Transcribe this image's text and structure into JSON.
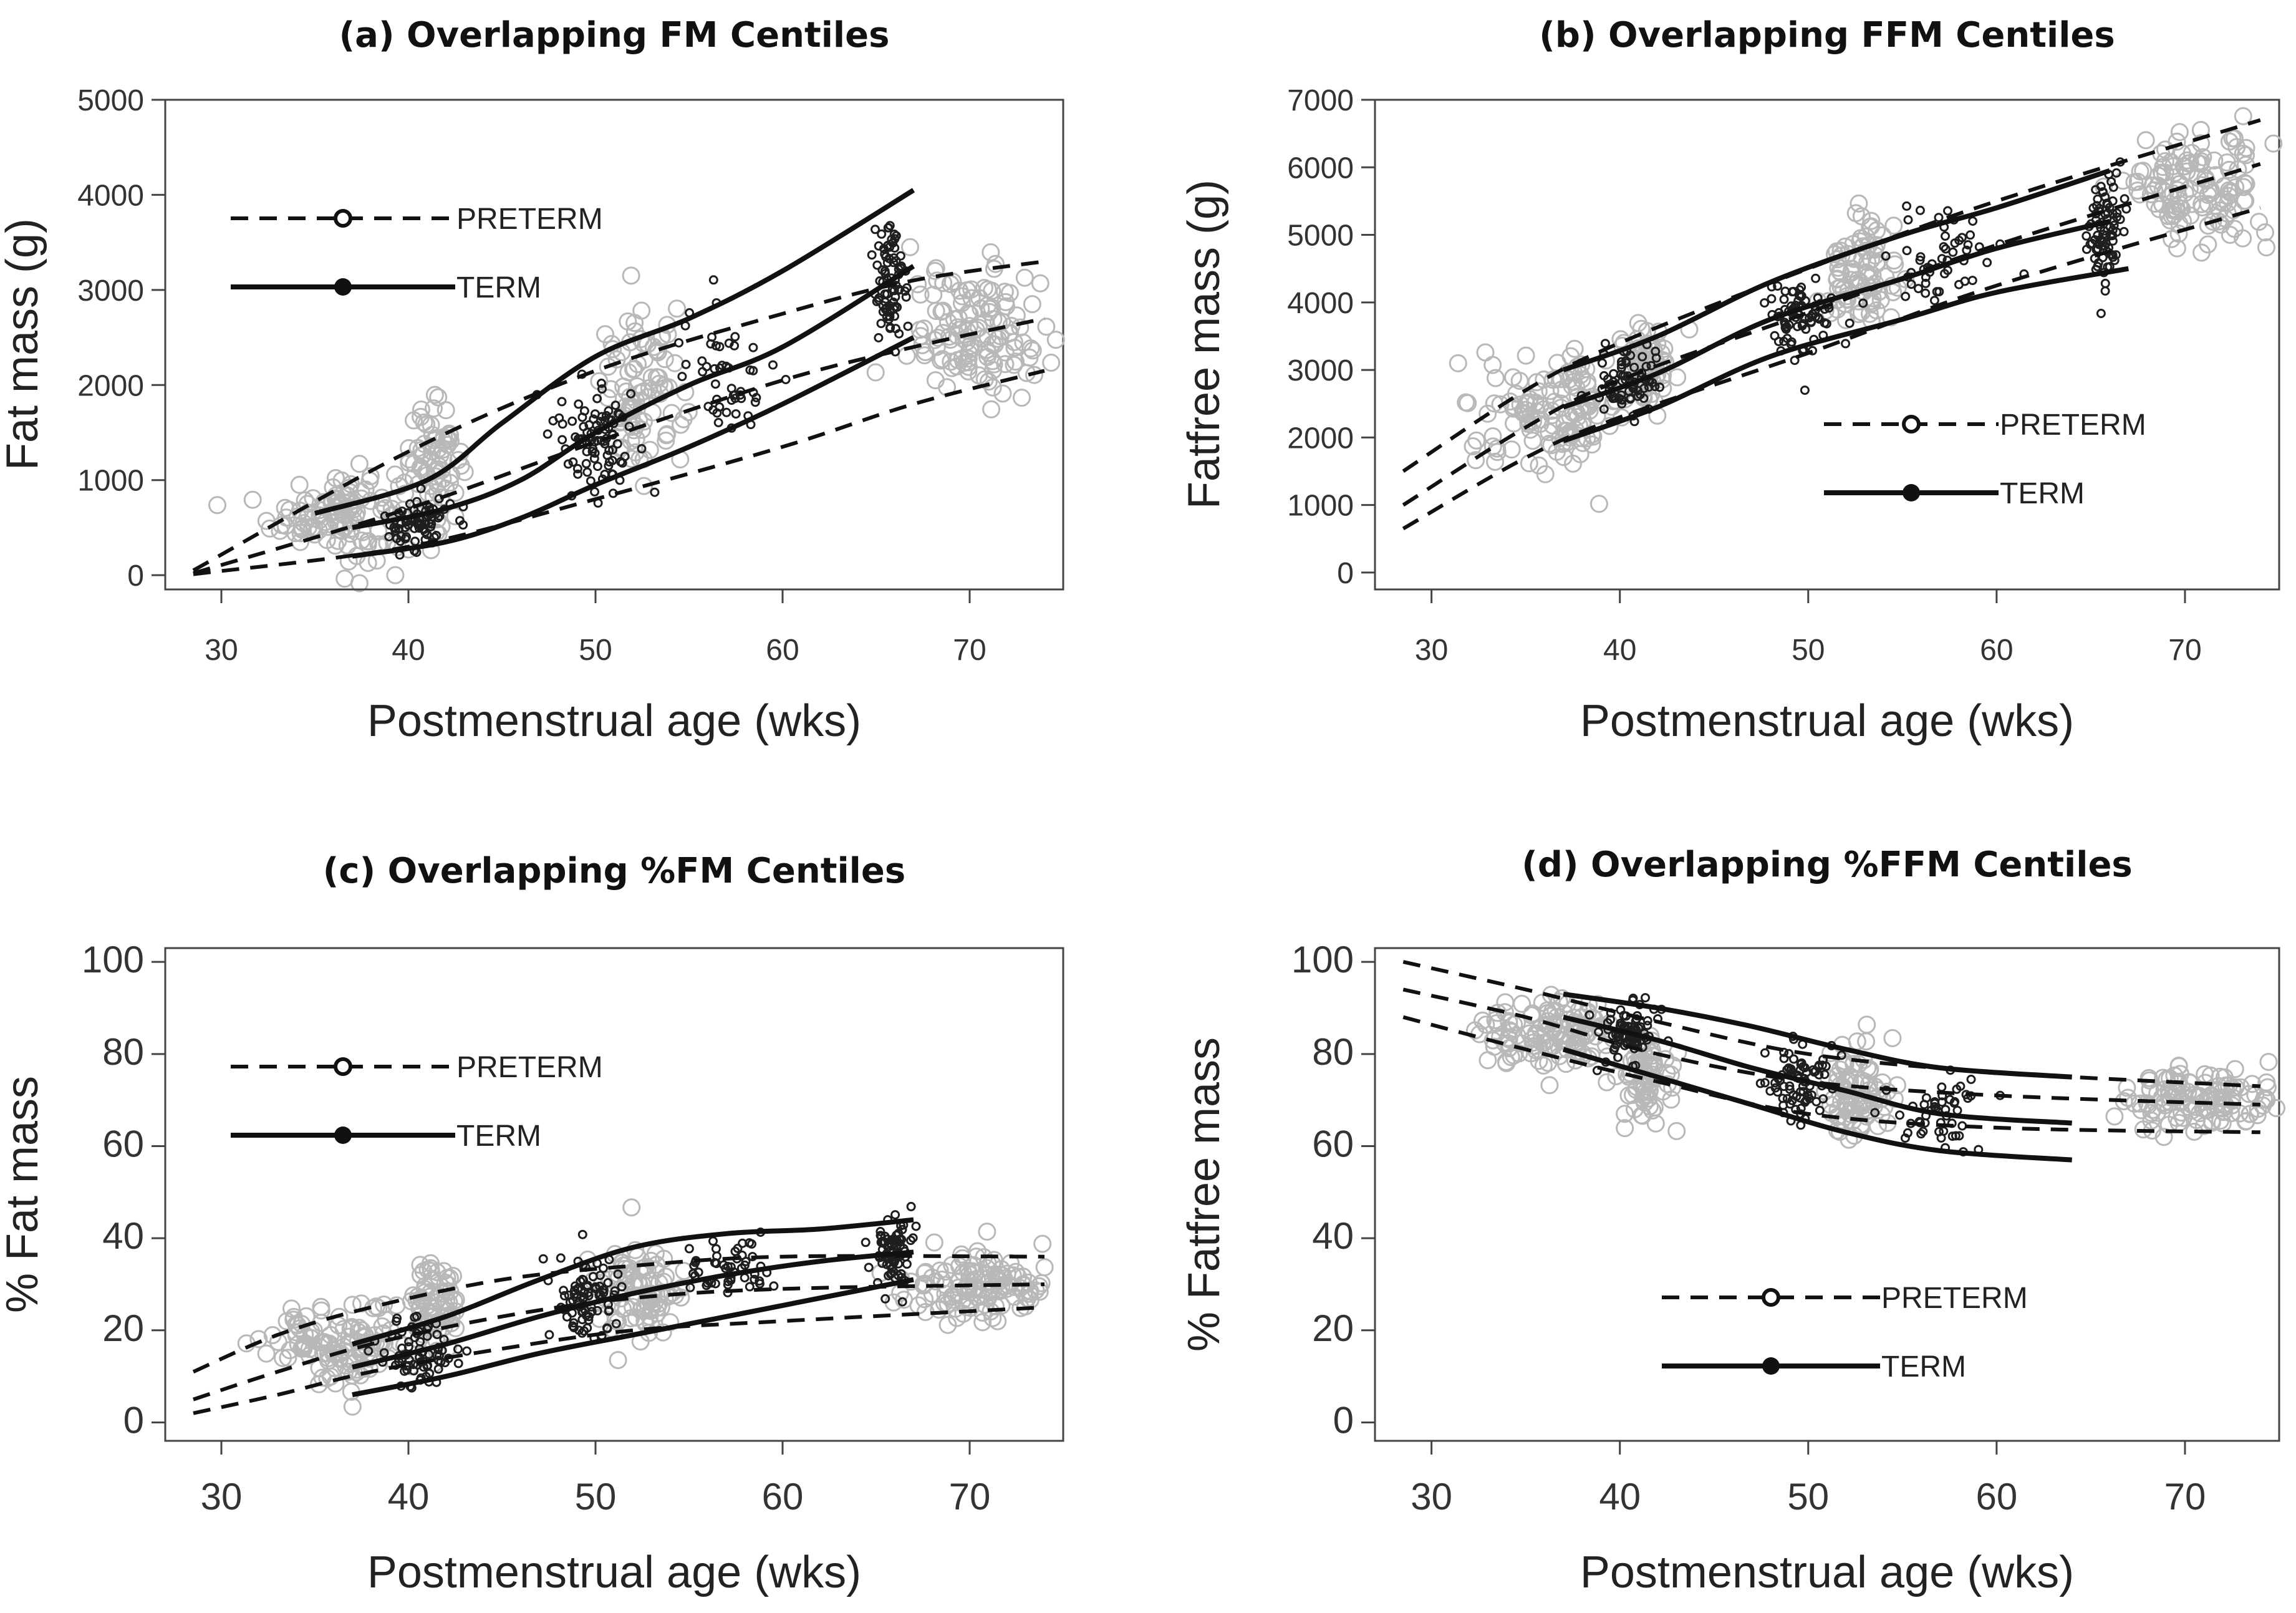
{
  "figure": {
    "preterm_color": "#b8b8b8",
    "term_color": "#1e1e1e",
    "line_color": "#111111"
  },
  "chart_data": [
    {
      "id": "a",
      "type": "scatter",
      "title": "(a) Overlapping FM Centiles",
      "xlabel": "Postmenstrual age (wks)",
      "ylabel": "Fat mass (g)",
      "xlim": [
        27,
        75
      ],
      "ylim": [
        -150,
        5000
      ],
      "xticks": [
        30,
        40,
        50,
        60,
        70
      ],
      "yticks": [
        0,
        1000,
        2000,
        3000,
        4000,
        5000
      ],
      "legend": {
        "position": "top-left",
        "preterm_label": "PRETERM",
        "term_label": "TERM"
      },
      "preterm_scatter": {
        "clusters": [
          {
            "x": 36.5,
            "x_spread": 3.2,
            "y": 650,
            "y_spread": 400,
            "n": 130
          },
          {
            "x": 41.5,
            "x_spread": 1.2,
            "y": 1200,
            "y_spread": 500,
            "n": 70
          },
          {
            "x": 52.5,
            "x_spread": 1.8,
            "y": 1900,
            "y_spread": 700,
            "n": 90
          },
          {
            "x": 70.5,
            "x_spread": 3.2,
            "y": 2550,
            "y_spread": 550,
            "n": 130
          }
        ]
      },
      "term_scatter": {
        "clusters": [
          {
            "x": 40.5,
            "x_spread": 1.5,
            "y": 550,
            "y_spread": 250,
            "n": 70
          },
          {
            "x": 50,
            "x_spread": 1.8,
            "y": 1500,
            "y_spread": 500,
            "n": 90
          },
          {
            "x": 57,
            "x_spread": 2.0,
            "y": 2100,
            "y_spread": 600,
            "n": 50
          },
          {
            "x": 65.8,
            "x_spread": 0.8,
            "y": 3100,
            "y_spread": 600,
            "n": 80
          }
        ]
      },
      "preterm_centiles": [
        {
          "name": "high",
          "x": [
            28.5,
            40,
            50,
            60,
            67,
            74
          ],
          "y": [
            50,
            1300,
            2150,
            2750,
            3100,
            3300
          ]
        },
        {
          "name": "mid",
          "x": [
            28.5,
            40,
            50,
            60,
            67,
            74
          ],
          "y": [
            20,
            700,
            1400,
            2050,
            2400,
            2700
          ]
        },
        {
          "name": "low",
          "x": [
            28.5,
            40,
            50,
            60,
            67,
            74
          ],
          "y": [
            10,
            300,
            800,
            1350,
            1800,
            2150
          ]
        }
      ],
      "term_centiles": [
        {
          "name": "high",
          "x": [
            35,
            41,
            45,
            50,
            55,
            60,
            67
          ],
          "y": [
            650,
            1000,
            1600,
            2300,
            2700,
            3200,
            4050
          ]
        },
        {
          "name": "mid",
          "x": [
            37,
            42,
            46,
            50,
            55,
            60,
            67
          ],
          "y": [
            500,
            700,
            1000,
            1500,
            2000,
            2400,
            3250
          ]
        },
        {
          "name": "low",
          "x": [
            37,
            42,
            46,
            50,
            55,
            60,
            67
          ],
          "y": [
            200,
            350,
            600,
            950,
            1350,
            1800,
            2500
          ]
        }
      ]
    },
    {
      "id": "b",
      "type": "scatter",
      "title": "(b) Overlapping FFM Centiles",
      "xlabel": "Postmenstrual age (wks)",
      "ylabel": "Fatfree mass (g)",
      "xlim": [
        27,
        75
      ],
      "ylim": [
        -250,
        7000
      ],
      "xticks": [
        30,
        40,
        50,
        60,
        70
      ],
      "yticks": [
        0,
        1000,
        2000,
        3000,
        4000,
        5000,
        6000,
        7000
      ],
      "legend": {
        "position": "bottom-right",
        "preterm_label": "PRETERM",
        "term_label": "TERM"
      },
      "preterm_scatter": {
        "clusters": [
          {
            "x": 36.5,
            "x_spread": 3.2,
            "y": 2400,
            "y_spread": 650,
            "n": 130
          },
          {
            "x": 41.5,
            "x_spread": 1.2,
            "y": 3100,
            "y_spread": 500,
            "n": 70
          },
          {
            "x": 52.5,
            "x_spread": 1.8,
            "y": 4400,
            "y_spread": 750,
            "n": 90
          },
          {
            "x": 70.5,
            "x_spread": 3.2,
            "y": 5700,
            "y_spread": 700,
            "n": 130
          }
        ]
      },
      "term_scatter": {
        "clusters": [
          {
            "x": 40.5,
            "x_spread": 1.5,
            "y": 2800,
            "y_spread": 450,
            "n": 70
          },
          {
            "x": 49.5,
            "x_spread": 1.5,
            "y": 3800,
            "y_spread": 500,
            "n": 80
          },
          {
            "x": 57,
            "x_spread": 2.0,
            "y": 4600,
            "y_spread": 550,
            "n": 50
          },
          {
            "x": 65.8,
            "x_spread": 0.8,
            "y": 5100,
            "y_spread": 650,
            "n": 80
          }
        ]
      },
      "preterm_centiles": [
        {
          "name": "high",
          "x": [
            28.5,
            35,
            40,
            50,
            60,
            74
          ],
          "y": [
            1500,
            2700,
            3400,
            4500,
            5500,
            6700
          ]
        },
        {
          "name": "mid",
          "x": [
            28.5,
            35,
            40,
            50,
            60,
            74
          ],
          "y": [
            1000,
            2150,
            2850,
            3850,
            4850,
            6050
          ]
        },
        {
          "name": "low",
          "x": [
            28.5,
            35,
            40,
            50,
            60,
            74
          ],
          "y": [
            650,
            1700,
            2300,
            3250,
            4250,
            5400
          ]
        }
      ],
      "term_centiles": [
        {
          "name": "high",
          "x": [
            37,
            42,
            48,
            55,
            60,
            66
          ],
          "y": [
            3000,
            3500,
            4300,
            5000,
            5400,
            5950
          ]
        },
        {
          "name": "mid",
          "x": [
            37,
            42,
            48,
            55,
            60,
            66
          ],
          "y": [
            2450,
            2950,
            3750,
            4350,
            4800,
            5200
          ]
        },
        {
          "name": "low",
          "x": [
            37,
            42,
            48,
            55,
            60,
            67
          ],
          "y": [
            1950,
            2450,
            3200,
            3750,
            4150,
            4500
          ]
        }
      ]
    },
    {
      "id": "c",
      "type": "scatter",
      "title": "(c) Overlapping %FM Centiles",
      "xlabel": "Postmenstrual age (wks)",
      "ylabel": "% Fat mass",
      "xlim": [
        27,
        75
      ],
      "ylim": [
        -4,
        103
      ],
      "xticks": [
        30,
        40,
        50,
        60,
        70
      ],
      "yticks": [
        0,
        20,
        40,
        60,
        80,
        100
      ],
      "legend": {
        "position": "top-left",
        "preterm_label": "PRETERM",
        "term_label": "TERM"
      },
      "preterm_scatter": {
        "clusters": [
          {
            "x": 36.5,
            "x_spread": 3.2,
            "y": 17,
            "y_spread": 7,
            "n": 130
          },
          {
            "x": 41.5,
            "x_spread": 1.2,
            "y": 26,
            "y_spread": 8,
            "n": 70
          },
          {
            "x": 52.5,
            "x_spread": 1.8,
            "y": 28,
            "y_spread": 9,
            "n": 90
          },
          {
            "x": 70.5,
            "x_spread": 3.2,
            "y": 30,
            "y_spread": 6,
            "n": 130
          }
        ]
      },
      "term_scatter": {
        "clusters": [
          {
            "x": 40.5,
            "x_spread": 1.5,
            "y": 15,
            "y_spread": 6,
            "n": 70
          },
          {
            "x": 49.5,
            "x_spread": 1.5,
            "y": 27,
            "y_spread": 7,
            "n": 80
          },
          {
            "x": 57,
            "x_spread": 2.0,
            "y": 33,
            "y_spread": 6,
            "n": 50
          },
          {
            "x": 65.8,
            "x_spread": 0.8,
            "y": 37,
            "y_spread": 6,
            "n": 80
          }
        ]
      },
      "preterm_centiles": [
        {
          "name": "high",
          "x": [
            28.5,
            33,
            38,
            45,
            52,
            60,
            74
          ],
          "y": [
            11,
            19,
            25,
            31,
            34,
            36,
            36
          ]
        },
        {
          "name": "mid",
          "x": [
            28.5,
            33,
            38,
            45,
            52,
            60,
            74
          ],
          "y": [
            5,
            11,
            17,
            23,
            27,
            29,
            30
          ]
        },
        {
          "name": "low",
          "x": [
            28.5,
            33,
            38,
            45,
            52,
            60,
            74
          ],
          "y": [
            2,
            6,
            11,
            16,
            20,
            22,
            25
          ]
        }
      ],
      "term_centiles": [
        {
          "name": "high",
          "x": [
            37,
            42,
            47,
            52,
            57,
            62,
            67
          ],
          "y": [
            17,
            23,
            31,
            38,
            41,
            42,
            44
          ]
        },
        {
          "name": "mid",
          "x": [
            37,
            42,
            47,
            52,
            57,
            62,
            67
          ],
          "y": [
            12,
            17,
            23,
            28,
            32,
            35,
            37
          ]
        },
        {
          "name": "low",
          "x": [
            37,
            42,
            47,
            52,
            57,
            62,
            67
          ],
          "y": [
            6,
            10,
            15,
            19,
            23,
            27,
            31
          ]
        }
      ]
    },
    {
      "id": "d",
      "type": "scatter",
      "title": "(d) Overlapping %FFM Centiles",
      "xlabel": "Postmenstrual age (wks)",
      "ylabel": "% Fatfree mass",
      "xlim": [
        27,
        75
      ],
      "ylim": [
        -4,
        103
      ],
      "xticks": [
        30,
        40,
        50,
        60,
        70
      ],
      "yticks": [
        0,
        20,
        40,
        60,
        80,
        100
      ],
      "legend": {
        "position": "bottom-center",
        "preterm_label": "PRETERM",
        "term_label": "TERM"
      },
      "preterm_scatter": {
        "clusters": [
          {
            "x": 36.5,
            "x_spread": 3.2,
            "y": 84,
            "y_spread": 7,
            "n": 130
          },
          {
            "x": 41.5,
            "x_spread": 1.2,
            "y": 75,
            "y_spread": 9,
            "n": 70
          },
          {
            "x": 52.5,
            "x_spread": 1.8,
            "y": 72,
            "y_spread": 9,
            "n": 90
          },
          {
            "x": 70.5,
            "x_spread": 3.2,
            "y": 70,
            "y_spread": 6,
            "n": 130
          }
        ]
      },
      "term_scatter": {
        "clusters": [
          {
            "x": 40.5,
            "x_spread": 1.5,
            "y": 85,
            "y_spread": 6,
            "n": 70
          },
          {
            "x": 49.5,
            "x_spread": 1.5,
            "y": 74,
            "y_spread": 7,
            "n": 80
          },
          {
            "x": 57,
            "x_spread": 2.0,
            "y": 67,
            "y_spread": 6,
            "n": 50
          }
        ]
      },
      "preterm_centiles": [
        {
          "name": "high",
          "x": [
            28.5,
            35,
            42,
            50,
            60,
            74
          ],
          "y": [
            100,
            94,
            87,
            80,
            76,
            73
          ]
        },
        {
          "name": "mid",
          "x": [
            28.5,
            35,
            42,
            50,
            60,
            74
          ],
          "y": [
            94,
            88,
            80,
            74,
            71,
            69
          ]
        },
        {
          "name": "low",
          "x": [
            28.5,
            35,
            42,
            50,
            60,
            74
          ],
          "y": [
            88,
            81,
            74,
            67,
            64,
            63
          ]
        }
      ],
      "term_centiles": [
        {
          "name": "high",
          "x": [
            37,
            42,
            47,
            52,
            57,
            64
          ],
          "y": [
            93,
            90,
            86,
            81,
            77,
            75
          ]
        },
        {
          "name": "mid",
          "x": [
            37,
            42,
            47,
            52,
            57,
            64
          ],
          "y": [
            88,
            83,
            77,
            72,
            67,
            65
          ]
        },
        {
          "name": "low",
          "x": [
            37,
            42,
            47,
            52,
            57,
            64
          ],
          "y": [
            81,
            75,
            69,
            63,
            59,
            57
          ]
        }
      ]
    }
  ]
}
